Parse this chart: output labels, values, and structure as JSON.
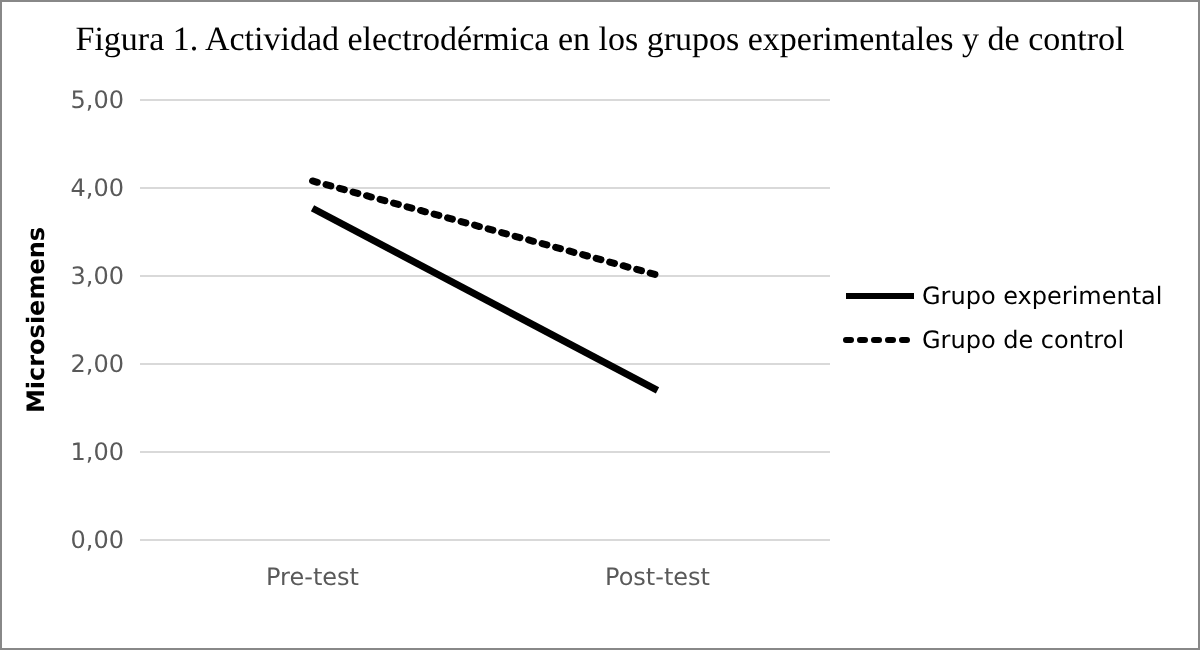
{
  "chart_data": {
    "type": "line",
    "title": "Figura 1. Actividad electrodérmica en los grupos experimentales y de control",
    "ylabel": "Microsiemens",
    "categories": [
      "Pre-test",
      "Post-test"
    ],
    "series": [
      {
        "name": "Grupo experimental",
        "color": "#000000",
        "values": [
          3.77,
          1.7
        ],
        "line_style": "solid"
      },
      {
        "name": "Grupo de control",
        "color": "#000000",
        "values": [
          4.08,
          3.01
        ],
        "line_style": "dotted"
      }
    ],
    "ylim": [
      0,
      5
    ],
    "yticks": [
      {
        "value": 0,
        "label": "0,00"
      },
      {
        "value": 1,
        "label": "1,00"
      },
      {
        "value": 2,
        "label": "2,00"
      },
      {
        "value": 3,
        "label": "3,00"
      },
      {
        "value": 4,
        "label": "4,00"
      },
      {
        "value": 5,
        "label": "5,00"
      }
    ],
    "grid": "y",
    "legend": "right",
    "marker": "none"
  }
}
